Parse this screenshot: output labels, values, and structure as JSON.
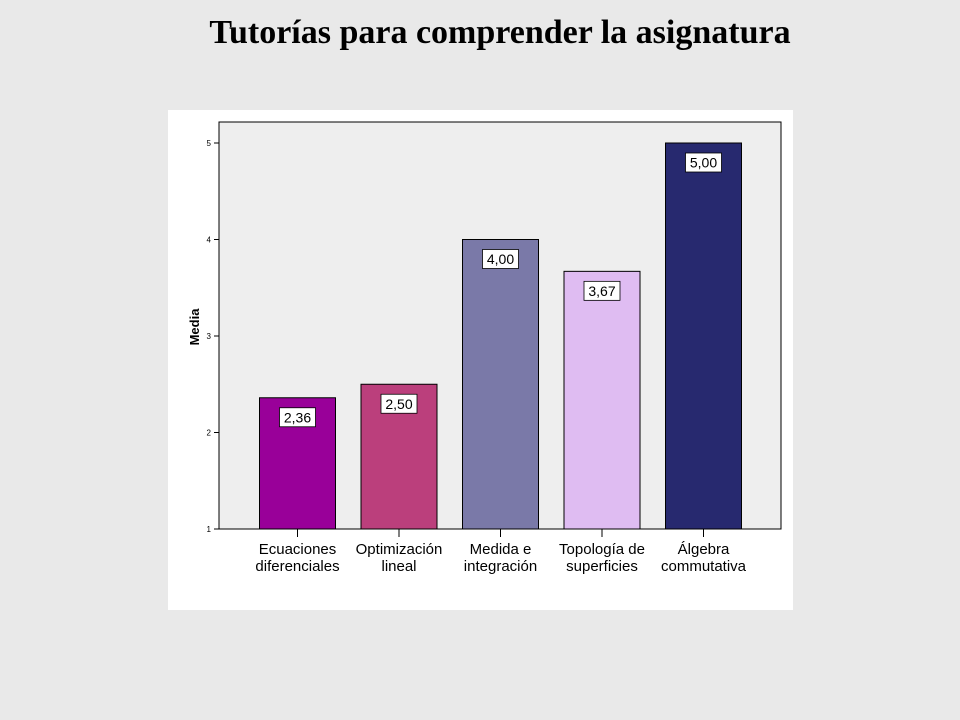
{
  "chart_data": {
    "type": "bar",
    "title": "Tutorías para comprender la asignatura",
    "ylabel": "Media",
    "xlabel": "",
    "ylim": [
      1,
      5
    ],
    "yticks": [
      "1",
      "2",
      "3",
      "4",
      "5"
    ],
    "grid": false,
    "categories": [
      [
        "Ecuaciones",
        "diferenciales"
      ],
      [
        "Optimización",
        "lineal"
      ],
      [
        "Medida e",
        "integración"
      ],
      [
        "Topología de",
        "superficies"
      ],
      [
        "Álgebra",
        "commutativa"
      ]
    ],
    "values": [
      2.36,
      2.5,
      4.0,
      3.67,
      5.0
    ],
    "value_labels": [
      "2,36",
      "2,50",
      "4,00",
      "3,67",
      "5,00"
    ],
    "colors": [
      "#990099",
      "#bb3f7c",
      "#7a79a8",
      "#dfbcf2",
      "#27296f"
    ],
    "plot_background": "#eeeeee",
    "panel_background": "#ffffff"
  }
}
